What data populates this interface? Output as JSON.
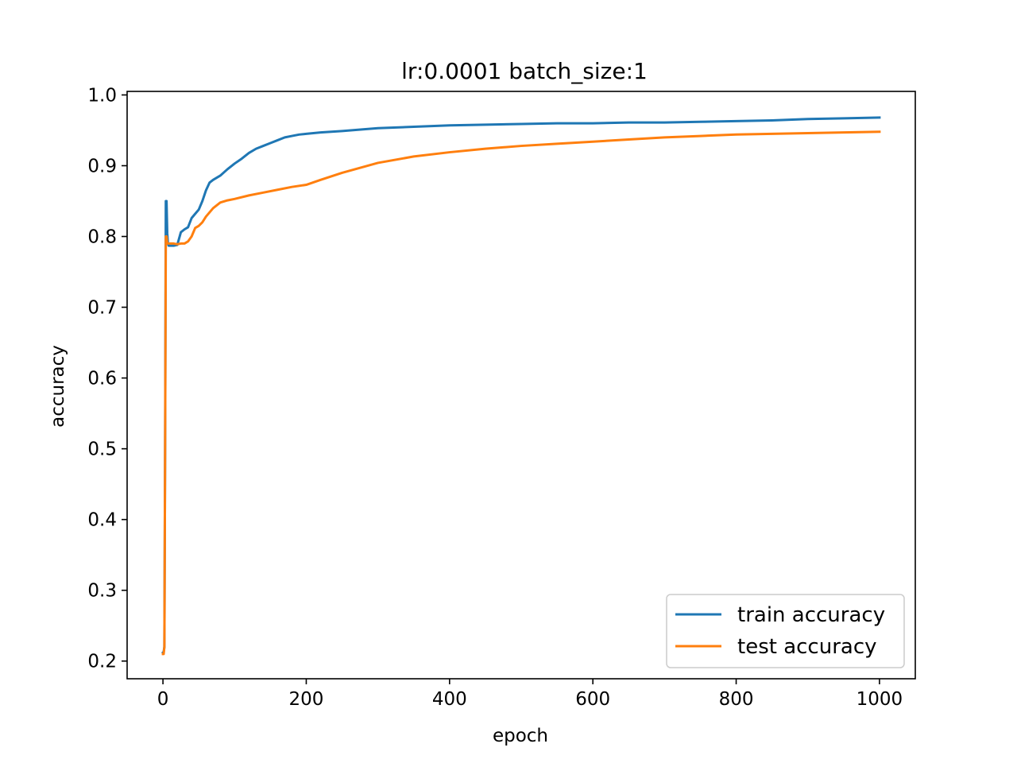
{
  "chart_data": {
    "type": "line",
    "title": "lr:0.0001 batch_size:1",
    "xlabel": "epoch",
    "ylabel": "accuracy",
    "xlim": [
      -50,
      1050
    ],
    "ylim": [
      0.175,
      1.005
    ],
    "xticks": [
      0,
      200,
      400,
      600,
      800,
      1000
    ],
    "xtick_labels": [
      "0",
      "200",
      "400",
      "600",
      "800",
      "1000"
    ],
    "yticks": [
      0.2,
      0.3,
      0.4,
      0.5,
      0.6,
      0.7,
      0.8,
      0.9,
      1.0
    ],
    "ytick_labels": [
      "0.2",
      "0.3",
      "0.4",
      "0.5",
      "0.6",
      "0.7",
      "0.8",
      "0.9",
      "1.0"
    ],
    "grid": false,
    "legend_position": "lower-right",
    "series": [
      {
        "name": "train accuracy",
        "color": "#1f77b4",
        "x": [
          0,
          1,
          2,
          3,
          4,
          5,
          6,
          7,
          8,
          10,
          15,
          20,
          25,
          30,
          35,
          40,
          45,
          50,
          55,
          60,
          65,
          70,
          80,
          90,
          100,
          110,
          120,
          130,
          140,
          150,
          160,
          170,
          180,
          190,
          200,
          220,
          250,
          300,
          350,
          400,
          450,
          500,
          550,
          600,
          650,
          700,
          750,
          800,
          850,
          900,
          950,
          1000
        ],
        "y": [
          0.212,
          0.213,
          0.22,
          0.5,
          0.85,
          0.85,
          0.805,
          0.79,
          0.787,
          0.787,
          0.787,
          0.788,
          0.806,
          0.81,
          0.813,
          0.826,
          0.832,
          0.838,
          0.85,
          0.865,
          0.876,
          0.88,
          0.886,
          0.895,
          0.903,
          0.91,
          0.918,
          0.924,
          0.928,
          0.932,
          0.936,
          0.94,
          0.942,
          0.944,
          0.945,
          0.947,
          0.949,
          0.953,
          0.955,
          0.957,
          0.958,
          0.959,
          0.96,
          0.96,
          0.961,
          0.961,
          0.962,
          0.963,
          0.964,
          0.966,
          0.967,
          0.968
        ]
      },
      {
        "name": "test accuracy",
        "color": "#ff7f0e",
        "x": [
          0,
          1,
          2,
          3,
          4,
          5,
          6,
          7,
          8,
          10,
          15,
          20,
          25,
          30,
          35,
          40,
          45,
          50,
          55,
          60,
          70,
          80,
          90,
          100,
          120,
          140,
          160,
          180,
          200,
          220,
          250,
          300,
          350,
          400,
          450,
          500,
          550,
          600,
          650,
          700,
          750,
          800,
          850,
          900,
          950,
          1000
        ],
        "y": [
          0.21,
          0.21,
          0.22,
          0.5,
          0.8,
          0.8,
          0.79,
          0.79,
          0.79,
          0.79,
          0.79,
          0.789,
          0.79,
          0.79,
          0.793,
          0.8,
          0.812,
          0.815,
          0.82,
          0.828,
          0.84,
          0.848,
          0.851,
          0.853,
          0.858,
          0.862,
          0.866,
          0.87,
          0.873,
          0.88,
          0.89,
          0.904,
          0.913,
          0.919,
          0.924,
          0.928,
          0.931,
          0.934,
          0.937,
          0.94,
          0.942,
          0.944,
          0.945,
          0.946,
          0.947,
          0.948
        ]
      }
    ]
  }
}
